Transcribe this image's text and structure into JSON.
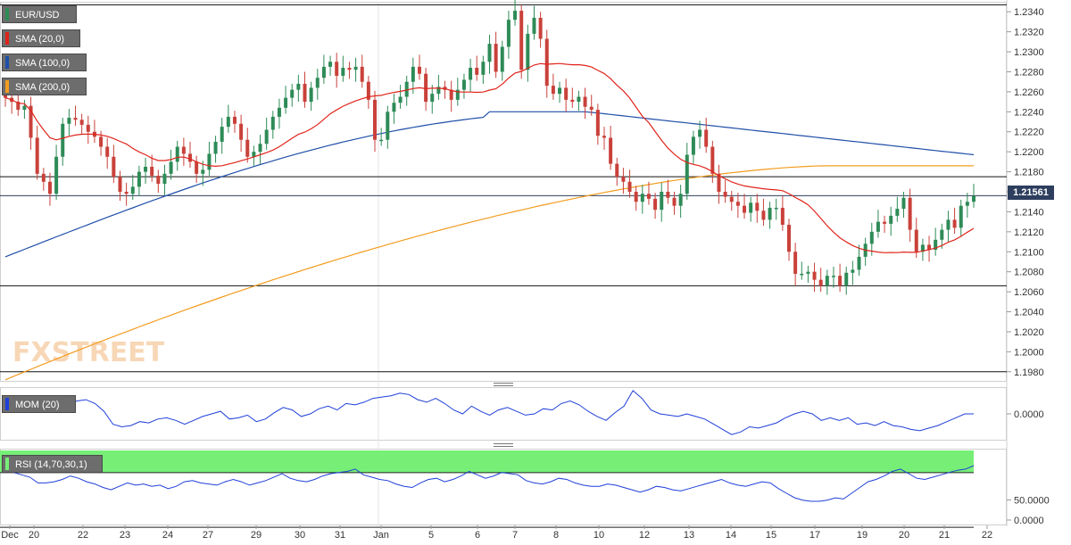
{
  "symbol": "EUR/USD",
  "legend": {
    "price": {
      "label": "EUR/USD",
      "color": "#2e8b57"
    },
    "sma20": {
      "label": "SMA (20,0)",
      "color": "#e0241b"
    },
    "sma100": {
      "label": "SMA (100,0)",
      "color": "#1f4fa8"
    },
    "sma200": {
      "label": "SMA (200,0)",
      "color": "#f39c1f"
    }
  },
  "mom_label": "MOM (20)",
  "rsi_label": "RSI (14,70,30,1)",
  "current_price": "1.21561",
  "watermark": "FXSTREET",
  "colors": {
    "bull": "#2e8b57",
    "bear": "#c9413a",
    "rsi_over": "#77ef77",
    "rsi_under": "#ff8080"
  },
  "chart_data": [
    {
      "type": "candlestick",
      "title": "EUR/USD",
      "x_ticks": [
        "Dec",
        "20",
        "22",
        "23",
        "24",
        "27",
        "29",
        "30",
        "31",
        "Jan",
        "5",
        "6",
        "7",
        "8",
        "10",
        "12",
        "13",
        "14",
        "15",
        "17",
        "19",
        "20",
        "21",
        "22"
      ],
      "y_ticks": [
        "1.2340",
        "1.2320",
        "1.2300",
        "1.2280",
        "1.2260",
        "1.2240",
        "1.2220",
        "1.2200",
        "1.2180",
        "1.2160",
        "1.2140",
        "1.2120",
        "1.2100",
        "1.2080",
        "1.2060",
        "1.2040",
        "1.2020",
        "1.2000",
        "1.1980"
      ],
      "ylim": [
        1.197,
        1.235
      ],
      "horizontal_lines": [
        1.2347,
        1.2175,
        1.2066,
        1.198
      ],
      "last_price": 1.21561,
      "close": [
        1.2254,
        1.225,
        1.2242,
        1.2246,
        1.2214,
        1.2178,
        1.217,
        1.2158,
        1.2195,
        1.2228,
        1.2234,
        1.2232,
        1.2227,
        1.222,
        1.2215,
        1.2205,
        1.2195,
        1.2175,
        1.216,
        1.2158,
        1.2165,
        1.218,
        1.2185,
        1.2176,
        1.2168,
        1.2178,
        1.219,
        1.2205,
        1.2198,
        1.219,
        1.2178,
        1.2182,
        1.2198,
        1.221,
        1.2225,
        1.2235,
        1.2228,
        1.2212,
        1.2195,
        1.22,
        1.2208,
        1.2222,
        1.2235,
        1.2244,
        1.2254,
        1.2262,
        1.2268,
        1.225,
        1.2264,
        1.2274,
        1.2285,
        1.229,
        1.2276,
        1.2284,
        1.2282,
        1.2285,
        1.227,
        1.2252,
        1.2212,
        1.2212,
        1.224,
        1.2249,
        1.2255,
        1.227,
        1.2285,
        1.2278,
        1.225,
        1.2258,
        1.2265,
        1.2262,
        1.2252,
        1.2262,
        1.2272,
        1.2284,
        1.2277,
        1.229,
        1.2308,
        1.228,
        1.2305,
        1.2332,
        1.2341,
        1.2282,
        1.2318,
        1.2334,
        1.2313,
        1.2266,
        1.2258,
        1.2264,
        1.2252,
        1.225,
        1.2255,
        1.2245,
        1.2242,
        1.2216,
        1.2214,
        1.2188,
        1.2175,
        1.217,
        1.216,
        1.215,
        1.2158,
        1.2153,
        1.2142,
        1.216,
        1.2154,
        1.2146,
        1.2158,
        1.2197,
        1.2215,
        1.2222,
        1.2205,
        1.2178,
        1.216,
        1.2155,
        1.215,
        1.2146,
        1.2139,
        1.2149,
        1.2141,
        1.2132,
        1.2144,
        1.2144,
        1.2127,
        1.21,
        1.2078,
        1.2078,
        1.208,
        1.2072,
        1.2066,
        1.2076,
        1.2076,
        1.2066,
        1.2079,
        1.2082,
        1.2095,
        1.2108,
        1.212,
        1.213,
        1.2128,
        1.2136,
        1.2143,
        1.2154,
        1.2122,
        1.21,
        1.2107,
        1.2102,
        1.2112,
        1.2122,
        1.2132,
        1.2124,
        1.2146,
        1.215,
        1.2156
      ]
    },
    {
      "type": "line",
      "title": "MOM (20)",
      "y_ticks": [
        "0.0000"
      ],
      "values": [
        0.9,
        0.8,
        1.0,
        0.9,
        0.6,
        0.3,
        0.5,
        0.8,
        1.0,
        1.1,
        0.8,
        0.2,
        -0.8,
        -1.0,
        -0.9,
        -0.6,
        -0.7,
        -0.4,
        -0.3,
        -0.5,
        -0.8,
        -0.5,
        -0.2,
        0.0,
        0.2,
        -0.4,
        -0.3,
        -0.1,
        -0.6,
        -0.4,
        0.1,
        0.5,
        0.3,
        -0.2,
        0.0,
        0.4,
        0.6,
        0.3,
        0.8,
        0.7,
        0.9,
        1.2,
        1.3,
        1.4,
        1.6,
        1.5,
        1.1,
        0.9,
        1.2,
        0.8,
        0.3,
        0.0,
        0.6,
        0.2,
        -0.1,
        0.3,
        0.5,
        0.2,
        -0.1,
        0.0,
        0.4,
        0.3,
        0.8,
        1.0,
        0.7,
        0.2,
        -0.2,
        -0.5,
        0.1,
        0.6,
        1.8,
        1.2,
        0.3,
        0.0,
        -0.1,
        -0.2,
        0.0,
        -0.2,
        -0.4,
        -0.8,
        -1.2,
        -1.6,
        -1.4,
        -1.0,
        -1.1,
        -0.9,
        -0.7,
        -0.3,
        0.0,
        0.2,
        0.0,
        -0.5,
        -0.3,
        -0.5,
        -0.3,
        -0.8,
        -0.7,
        -0.9,
        -0.6,
        -0.9,
        -1.0,
        -1.2,
        -1.3,
        -1.1,
        -0.9,
        -0.6,
        -0.3,
        0.0,
        0.0
      ],
      "ylim": [
        -2.0,
        2.0
      ]
    },
    {
      "type": "line",
      "title": "RSI (14,70,30,1)",
      "y_ticks": [
        "50.0000",
        "0.0000"
      ],
      "overbought": 70,
      "oversold": 30,
      "values": [
        57,
        55,
        53,
        51,
        46,
        46,
        47,
        49,
        52,
        50,
        47,
        45,
        42,
        40,
        43,
        46,
        44,
        45,
        43,
        44,
        41,
        43,
        47,
        48,
        46,
        45,
        44,
        47,
        49,
        47,
        44,
        46,
        48,
        51,
        54,
        50,
        48,
        47,
        49,
        52,
        54,
        55,
        56,
        58,
        53,
        51,
        49,
        48,
        45,
        43,
        42,
        46,
        49,
        50,
        47,
        49,
        52,
        56,
        53,
        50,
        52,
        55,
        54,
        53,
        48,
        46,
        45,
        47,
        50,
        49,
        46,
        44,
        43,
        43,
        45,
        44,
        42,
        40,
        38,
        40,
        43,
        42,
        40,
        39,
        41,
        43,
        45,
        47,
        49,
        46,
        44,
        43,
        45,
        47,
        46,
        41,
        37,
        33,
        31,
        30,
        30,
        31,
        33,
        32,
        37,
        42,
        47,
        49,
        52,
        56,
        58,
        54,
        50,
        49,
        51,
        53,
        55,
        57,
        58,
        61
      ]
    }
  ]
}
